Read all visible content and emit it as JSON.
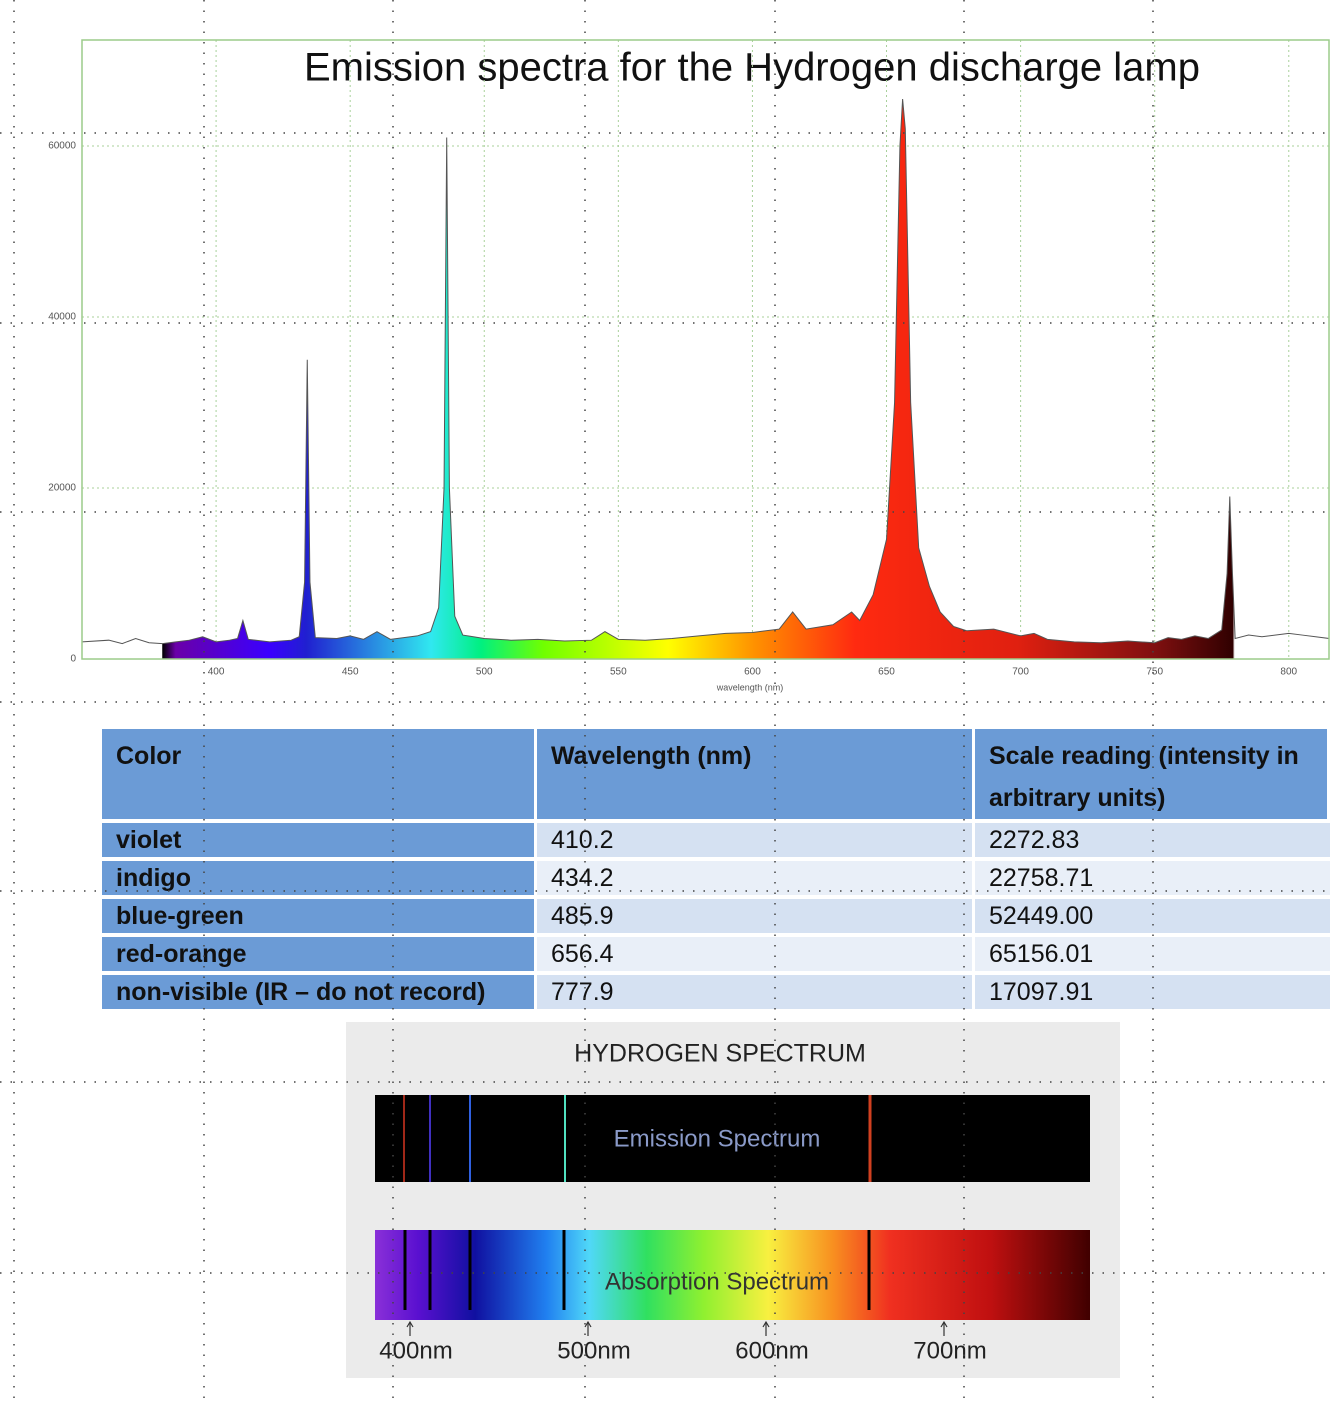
{
  "chart_data": {
    "type": "area",
    "title": "Emission spectra for the Hydrogen discharge lamp",
    "x_label": "wavelength (nm)",
    "x": [
      350,
      360,
      365,
      370,
      375,
      380,
      385,
      390,
      395,
      400,
      405,
      408,
      410,
      412,
      420,
      428,
      431,
      433,
      434,
      435,
      437,
      445,
      450,
      455,
      460,
      465,
      470,
      475,
      480,
      483,
      485,
      486,
      487,
      489,
      492,
      500,
      510,
      520,
      530,
      540,
      545,
      550,
      560,
      570,
      580,
      590,
      600,
      610,
      615,
      620,
      630,
      637,
      640,
      645,
      650,
      653,
      655,
      656,
      657,
      659,
      662,
      666,
      670,
      675,
      680,
      690,
      700,
      705,
      710,
      720,
      730,
      740,
      750,
      755,
      760,
      765,
      770,
      775,
      777,
      778,
      779,
      780,
      785,
      790,
      800,
      805,
      815
    ],
    "values": [
      2000,
      2200,
      1800,
      2400,
      1900,
      1800,
      2000,
      2200,
      2600,
      2000,
      2200,
      2400,
      4500,
      2300,
      2000,
      2200,
      2600,
      9000,
      35000,
      9000,
      2500,
      2400,
      2700,
      2300,
      3200,
      2300,
      2500,
      2700,
      3200,
      6000,
      20000,
      61000,
      20000,
      5000,
      2800,
      2400,
      2200,
      2300,
      2100,
      2200,
      3200,
      2300,
      2200,
      2400,
      2700,
      3000,
      3100,
      3500,
      5500,
      3500,
      4000,
      5500,
      4500,
      7500,
      14000,
      30000,
      60000,
      65500,
      62000,
      30000,
      13000,
      8500,
      5500,
      3800,
      3300,
      3500,
      2700,
      3000,
      2300,
      2000,
      1900,
      2100,
      1900,
      2500,
      2300,
      2700,
      2400,
      3400,
      10000,
      19000,
      10000,
      2400,
      2800,
      2600,
      3000,
      2800,
      2400
    ],
    "xlim": [
      350,
      815
    ],
    "ylim": [
      0,
      72400
    ],
    "xticks": [
      400,
      450,
      500,
      550,
      600,
      650,
      700,
      750,
      800
    ],
    "yticks": [
      0,
      20000,
      40000,
      60000
    ],
    "grid": true,
    "color": "#555555"
  },
  "table": {
    "header": [
      "Color",
      "Wavelength (nm)",
      "Scale reading (intensity in arbitrary units)"
    ],
    "rows": [
      [
        "violet",
        "410.2",
        "2272.83"
      ],
      [
        "indigo",
        "434.2",
        "22758.71"
      ],
      [
        "blue-green",
        "485.9",
        "52449.00"
      ],
      [
        "red-orange",
        "656.4",
        "65156.01"
      ],
      [
        "non-visible (IR – do not record)",
        "777.9",
        "17097.91"
      ]
    ]
  },
  "diagram": {
    "title": "HYDROGEN SPECTRUM",
    "emission_label": "Emission Spectrum",
    "absorption_label": "Absorption Spectrum",
    "scale_labels": [
      "400nm",
      "500nm",
      "600nm",
      "700nm"
    ]
  }
}
